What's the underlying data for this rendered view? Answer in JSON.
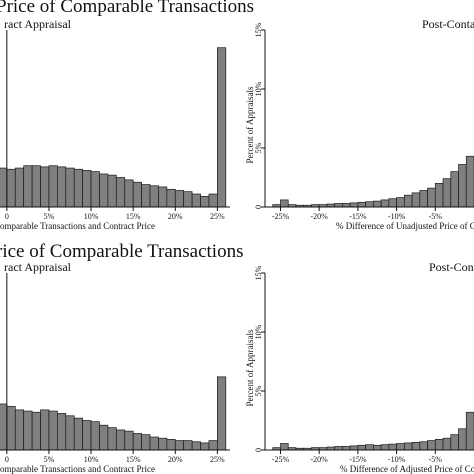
{
  "panels": [
    {
      "title": "Price of Comparable Transactions",
      "subtitle_left": "ract Appraisal",
      "subtitle_right": "Post-Conta"
    },
    {
      "title": "rice of Comparable Transactions",
      "subtitle_left": "ract Appraisal",
      "subtitle_right": "Post-Conta"
    }
  ],
  "chart_data": [
    {
      "type": "bar",
      "panel": "top-left",
      "xlabel": "omparable Transactions and Contract Price",
      "ylabel": "",
      "xlim": [
        -2,
        26.5
      ],
      "ylim": [
        0,
        0.15
      ],
      "x_ticks": [
        "0",
        "5%",
        "10%",
        "15%",
        "20%",
        "25%"
      ],
      "x_tick_values": [
        0,
        5,
        10,
        15,
        20,
        25
      ],
      "y_ticks": [],
      "reference_line_x": 0,
      "bin_width": 1,
      "bin_left": [
        -2,
        -1,
        0,
        1,
        2,
        3,
        4,
        5,
        6,
        7,
        8,
        9,
        10,
        11,
        12,
        13,
        14,
        15,
        16,
        17,
        18,
        19,
        20,
        21,
        22,
        23,
        24,
        25
      ],
      "values": [
        0.031,
        0.033,
        0.032,
        0.033,
        0.035,
        0.035,
        0.034,
        0.035,
        0.034,
        0.033,
        0.032,
        0.031,
        0.03,
        0.028,
        0.027,
        0.025,
        0.023,
        0.021,
        0.019,
        0.018,
        0.017,
        0.015,
        0.014,
        0.013,
        0.011,
        0.009,
        0.011,
        0.135
      ]
    },
    {
      "type": "bar",
      "panel": "top-right",
      "xlabel": "% Difference of Unadjusted Price of C",
      "ylabel": "Percent of Appraisals",
      "xlim": [
        -27,
        0
      ],
      "ylim": [
        0,
        15
      ],
      "x_ticks": [
        "-25%",
        "-20%",
        "-15%",
        "-10%",
        "-5%"
      ],
      "x_tick_values": [
        -25,
        -20,
        -15,
        -10,
        -5
      ],
      "y_ticks": [
        "0",
        "5%",
        "10%",
        "15%"
      ],
      "y_tick_values": [
        0,
        5,
        10,
        15
      ],
      "bin_width": 1,
      "bin_left": [
        -26,
        -25,
        -24,
        -23,
        -22,
        -21,
        -20,
        -19,
        -18,
        -17,
        -16,
        -15,
        -14,
        -13,
        -12,
        -11,
        -10,
        -9,
        -8,
        -7,
        -6,
        -5,
        -4,
        -3,
        -2,
        -1
      ],
      "values": [
        0.2,
        0.6,
        0.2,
        0.15,
        0.15,
        0.2,
        0.2,
        0.25,
        0.3,
        0.3,
        0.35,
        0.4,
        0.45,
        0.5,
        0.6,
        0.7,
        0.8,
        1.0,
        1.2,
        1.4,
        1.6,
        2.0,
        2.4,
        3.0,
        3.6,
        4.3
      ]
    },
    {
      "type": "bar",
      "panel": "bottom-left",
      "xlabel": "omparable Transactions and Contract Price",
      "ylabel": "",
      "xlim": [
        -2,
        26.5
      ],
      "ylim": [
        0,
        0.15
      ],
      "x_ticks": [
        "0",
        "5%",
        "10%",
        "15%",
        "20%",
        "25%"
      ],
      "x_tick_values": [
        0,
        5,
        10,
        15,
        20,
        25
      ],
      "y_ticks": [],
      "reference_line_x": 0,
      "bin_width": 1,
      "bin_left": [
        -2,
        -1,
        0,
        1,
        2,
        3,
        4,
        5,
        6,
        7,
        8,
        9,
        10,
        11,
        12,
        13,
        14,
        15,
        16,
        17,
        18,
        19,
        20,
        21,
        22,
        23,
        24,
        25
      ],
      "values": [
        0.038,
        0.039,
        0.037,
        0.034,
        0.033,
        0.032,
        0.034,
        0.033,
        0.031,
        0.029,
        0.027,
        0.025,
        0.024,
        0.021,
        0.019,
        0.017,
        0.016,
        0.014,
        0.013,
        0.011,
        0.01,
        0.009,
        0.008,
        0.008,
        0.007,
        0.006,
        0.008,
        0.062
      ]
    },
    {
      "type": "bar",
      "panel": "bottom-right",
      "xlabel": "% Difference of Adjusted Price of Co",
      "ylabel": "Percent of Appraisals",
      "xlim": [
        -27,
        0
      ],
      "ylim": [
        0,
        15
      ],
      "x_ticks": [
        "-25%",
        "-20%",
        "-15%",
        "-10%",
        "-5%"
      ],
      "x_tick_values": [
        -25,
        -20,
        -15,
        -10,
        -5
      ],
      "y_ticks": [
        "0",
        "5%",
        "10%",
        "15%"
      ],
      "y_tick_values": [
        0,
        5,
        10,
        15
      ],
      "bin_width": 1,
      "bin_left": [
        -26,
        -25,
        -24,
        -23,
        -22,
        -21,
        -20,
        -19,
        -18,
        -17,
        -16,
        -15,
        -14,
        -13,
        -12,
        -11,
        -10,
        -9,
        -8,
        -7,
        -6,
        -5,
        -4,
        -3,
        -2,
        -1
      ],
      "values": [
        0.2,
        0.55,
        0.2,
        0.15,
        0.15,
        0.2,
        0.2,
        0.25,
        0.3,
        0.3,
        0.35,
        0.4,
        0.45,
        0.4,
        0.45,
        0.5,
        0.55,
        0.6,
        0.65,
        0.7,
        0.8,
        0.9,
        1.0,
        1.3,
        1.8,
        3.2
      ]
    }
  ],
  "colors": {
    "bar_fill": "#808080",
    "bar_stroke": "#1a1a1a",
    "axis": "#111111"
  }
}
